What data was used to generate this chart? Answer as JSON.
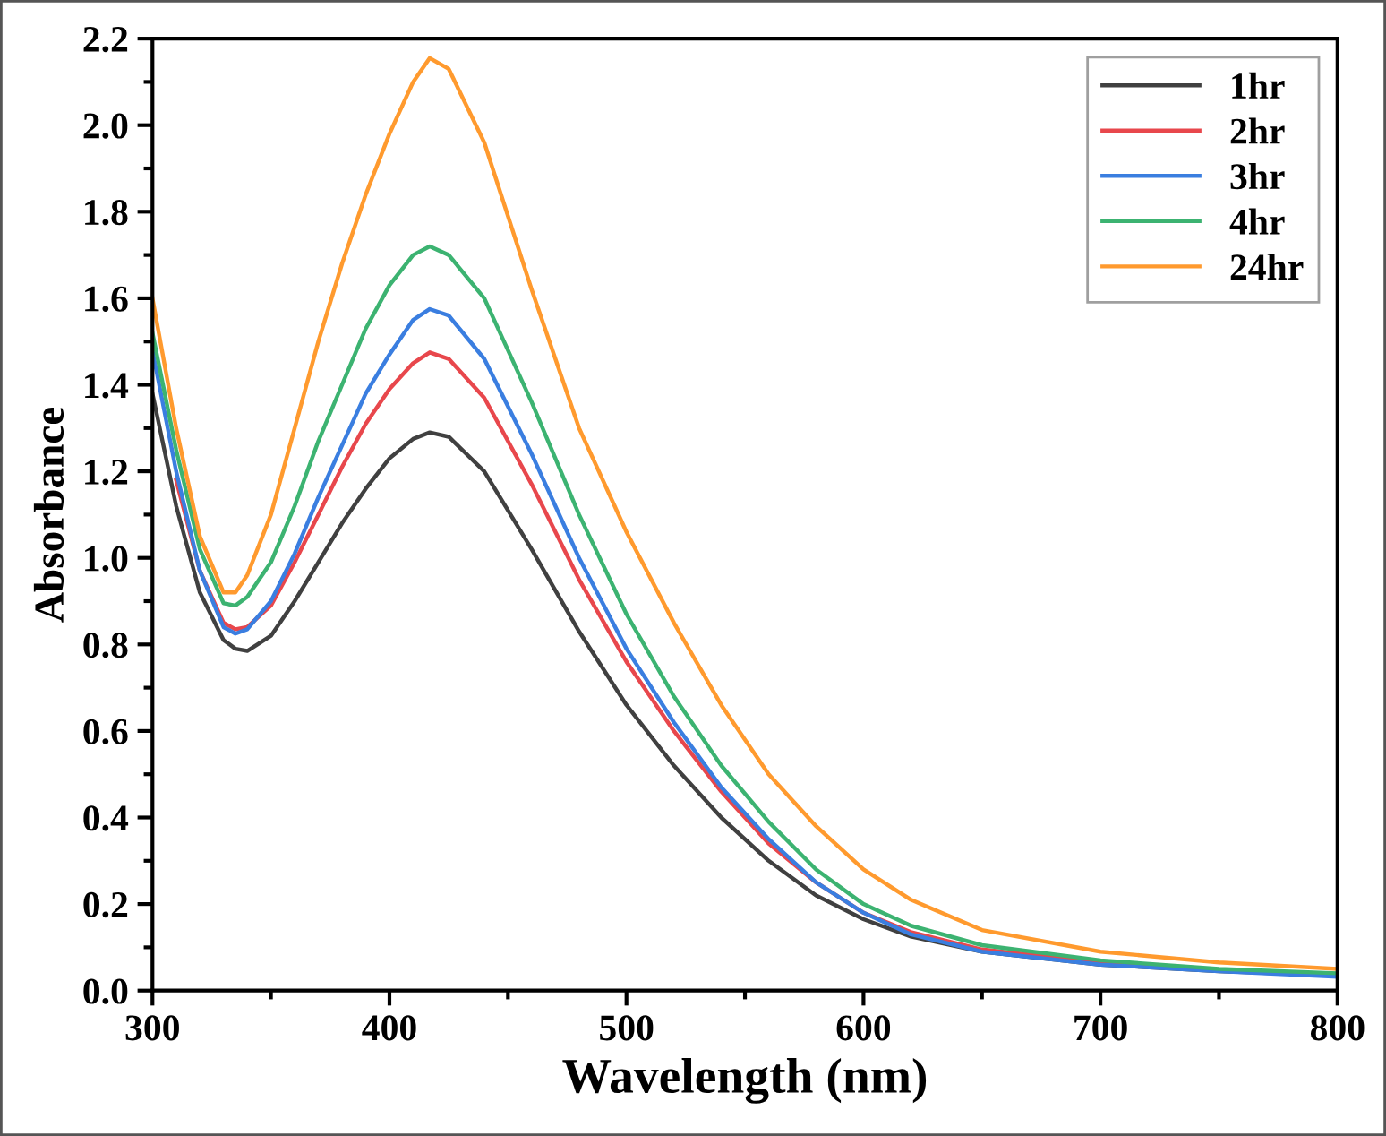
{
  "chart_data": {
    "type": "line",
    "xlabel": "Wavelength (nm)",
    "ylabel": "Absorbance",
    "x": [
      300,
      310,
      320,
      330,
      335,
      340,
      350,
      360,
      370,
      380,
      390,
      400,
      410,
      417,
      425,
      440,
      460,
      480,
      500,
      520,
      540,
      560,
      580,
      600,
      620,
      650,
      700,
      750,
      800
    ],
    "series": [
      {
        "name": "1hr",
        "color": "#404040",
        "values": [
          1.38,
          1.12,
          0.92,
          0.81,
          0.79,
          0.785,
          0.82,
          0.9,
          0.99,
          1.08,
          1.16,
          1.23,
          1.275,
          1.29,
          1.28,
          1.2,
          1.02,
          0.83,
          0.66,
          0.52,
          0.4,
          0.3,
          0.22,
          0.165,
          0.125,
          0.09,
          0.06,
          0.045,
          0.035
        ]
      },
      {
        "name": "2hr",
        "color": "#e8474c",
        "values": [
          null,
          1.18,
          0.97,
          0.85,
          0.835,
          0.84,
          0.89,
          0.99,
          1.1,
          1.21,
          1.31,
          1.39,
          1.45,
          1.475,
          1.46,
          1.37,
          1.17,
          0.95,
          0.76,
          0.6,
          0.46,
          0.34,
          0.25,
          0.18,
          0.135,
          0.095,
          0.065,
          0.048,
          0.035
        ]
      },
      {
        "name": "3hr",
        "color": "#3a7ee0",
        "values": [
          1.48,
          1.2,
          0.97,
          0.84,
          0.825,
          0.835,
          0.9,
          1.01,
          1.14,
          1.26,
          1.38,
          1.47,
          1.55,
          1.575,
          1.56,
          1.46,
          1.24,
          1.0,
          0.79,
          0.62,
          0.47,
          0.35,
          0.25,
          0.18,
          0.13,
          0.09,
          0.06,
          0.045,
          0.032
        ]
      },
      {
        "name": "4hr",
        "color": "#3cb371",
        "values": [
          1.52,
          1.25,
          1.02,
          0.895,
          0.89,
          0.91,
          0.99,
          1.12,
          1.27,
          1.4,
          1.53,
          1.63,
          1.7,
          1.72,
          1.7,
          1.6,
          1.36,
          1.1,
          0.87,
          0.68,
          0.52,
          0.39,
          0.28,
          0.2,
          0.15,
          0.105,
          0.07,
          0.05,
          0.04
        ]
      },
      {
        "name": "24hr",
        "color": "#ff9a2e",
        "values": [
          1.6,
          1.3,
          1.05,
          0.92,
          0.92,
          0.96,
          1.1,
          1.3,
          1.5,
          1.68,
          1.84,
          1.98,
          2.1,
          2.155,
          2.13,
          1.96,
          1.62,
          1.3,
          1.06,
          0.85,
          0.66,
          0.5,
          0.38,
          0.28,
          0.21,
          0.14,
          0.09,
          0.065,
          0.05
        ]
      }
    ],
    "xlim": [
      300,
      800
    ],
    "ylim": [
      0,
      2.2
    ],
    "xticks": [
      300,
      {
        "value": 350,
        "label": null
      },
      400,
      {
        "value": 450,
        "label": null
      },
      500,
      {
        "value": 550,
        "label": null
      },
      600,
      {
        "value": 650,
        "label": null
      },
      700,
      {
        "value": 750,
        "label": null
      },
      800
    ],
    "yticks": [
      {
        "value": 0,
        "label": "0.0"
      },
      {
        "value": 0.1,
        "label": null
      },
      0.2,
      {
        "value": 0.3,
        "label": null
      },
      0.4,
      {
        "value": 0.5,
        "label": null
      },
      0.6,
      {
        "value": 0.7,
        "label": null
      },
      0.8,
      {
        "value": 0.9,
        "label": null
      },
      {
        "value": 1,
        "label": "1.0"
      },
      {
        "value": 1.1,
        "label": null
      },
      1.2,
      {
        "value": 1.3,
        "label": null
      },
      1.4,
      {
        "value": 1.5,
        "label": null
      },
      1.6,
      {
        "value": 1.7,
        "label": null
      },
      1.8,
      {
        "value": 1.9,
        "label": null
      },
      {
        "value": 2,
        "label": "2.0"
      },
      {
        "value": 2.1,
        "label": null
      },
      2.2
    ],
    "legend": "top right",
    "grid": false,
    "marker": "none",
    "line_style": "solid"
  }
}
